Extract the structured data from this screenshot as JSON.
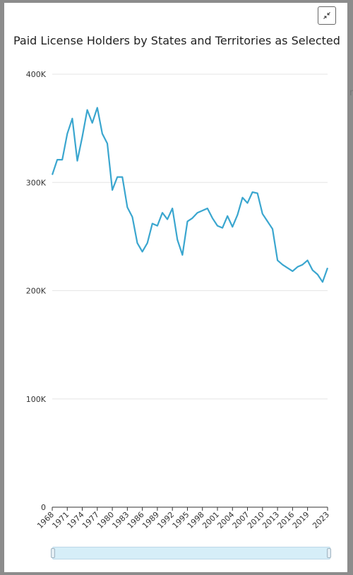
{
  "header": {
    "collapse_icon": "collapse-arrows-icon",
    "side_glyph": "r"
  },
  "chart_data": {
    "type": "line",
    "title": "Paid License Holders by States and Territories as Selected",
    "xlabel": "",
    "ylabel": "",
    "ylim": [
      0,
      400000
    ],
    "y_ticks": [
      0,
      100000,
      200000,
      300000,
      400000
    ],
    "y_tick_labels": [
      "0",
      "100K",
      "200K",
      "300K",
      "400K"
    ],
    "x_ticks": [
      1968,
      1971,
      1974,
      1977,
      1980,
      1983,
      1986,
      1989,
      1992,
      1995,
      1998,
      2001,
      2004,
      2007,
      2010,
      2013,
      2016,
      2019,
      2023
    ],
    "x_tick_labels": [
      "1968",
      "1971",
      "1974",
      "1977",
      "1980",
      "1983",
      "1986",
      "1989",
      "1992",
      "1995",
      "1998",
      "2001",
      "2004",
      "2007",
      "2010",
      "2013",
      "2016",
      "2019",
      "2023"
    ],
    "grid": true,
    "line_color": "#3aa6cf",
    "x": [
      1968,
      1969,
      1970,
      1971,
      1972,
      1973,
      1974,
      1975,
      1976,
      1977,
      1978,
      1979,
      1980,
      1981,
      1982,
      1983,
      1984,
      1985,
      1986,
      1987,
      1988,
      1989,
      1990,
      1991,
      1992,
      1993,
      1994,
      1995,
      1996,
      1997,
      1998,
      1999,
      2000,
      2001,
      2002,
      2003,
      2004,
      2005,
      2006,
      2007,
      2008,
      2009,
      2010,
      2011,
      2012,
      2013,
      2014,
      2015,
      2016,
      2017,
      2018,
      2019,
      2020,
      2021,
      2022,
      2023
    ],
    "values": [
      307000,
      321000,
      321000,
      345000,
      359000,
      320000,
      342000,
      367000,
      355000,
      369000,
      345000,
      336000,
      293000,
      305000,
      305000,
      277000,
      268000,
      244000,
      236000,
      244000,
      262000,
      260000,
      272000,
      266000,
      276000,
      247000,
      233000,
      264000,
      267000,
      272000,
      274000,
      276000,
      267000,
      260000,
      258000,
      269000,
      259000,
      270000,
      286000,
      281000,
      291000,
      290000,
      271000,
      264000,
      257000,
      228000,
      224000,
      221000,
      218000,
      222000,
      224000,
      228000,
      219000,
      215000,
      208000,
      221000
    ]
  },
  "range_slider": {
    "start_fraction": 0.0,
    "end_fraction": 1.0
  }
}
